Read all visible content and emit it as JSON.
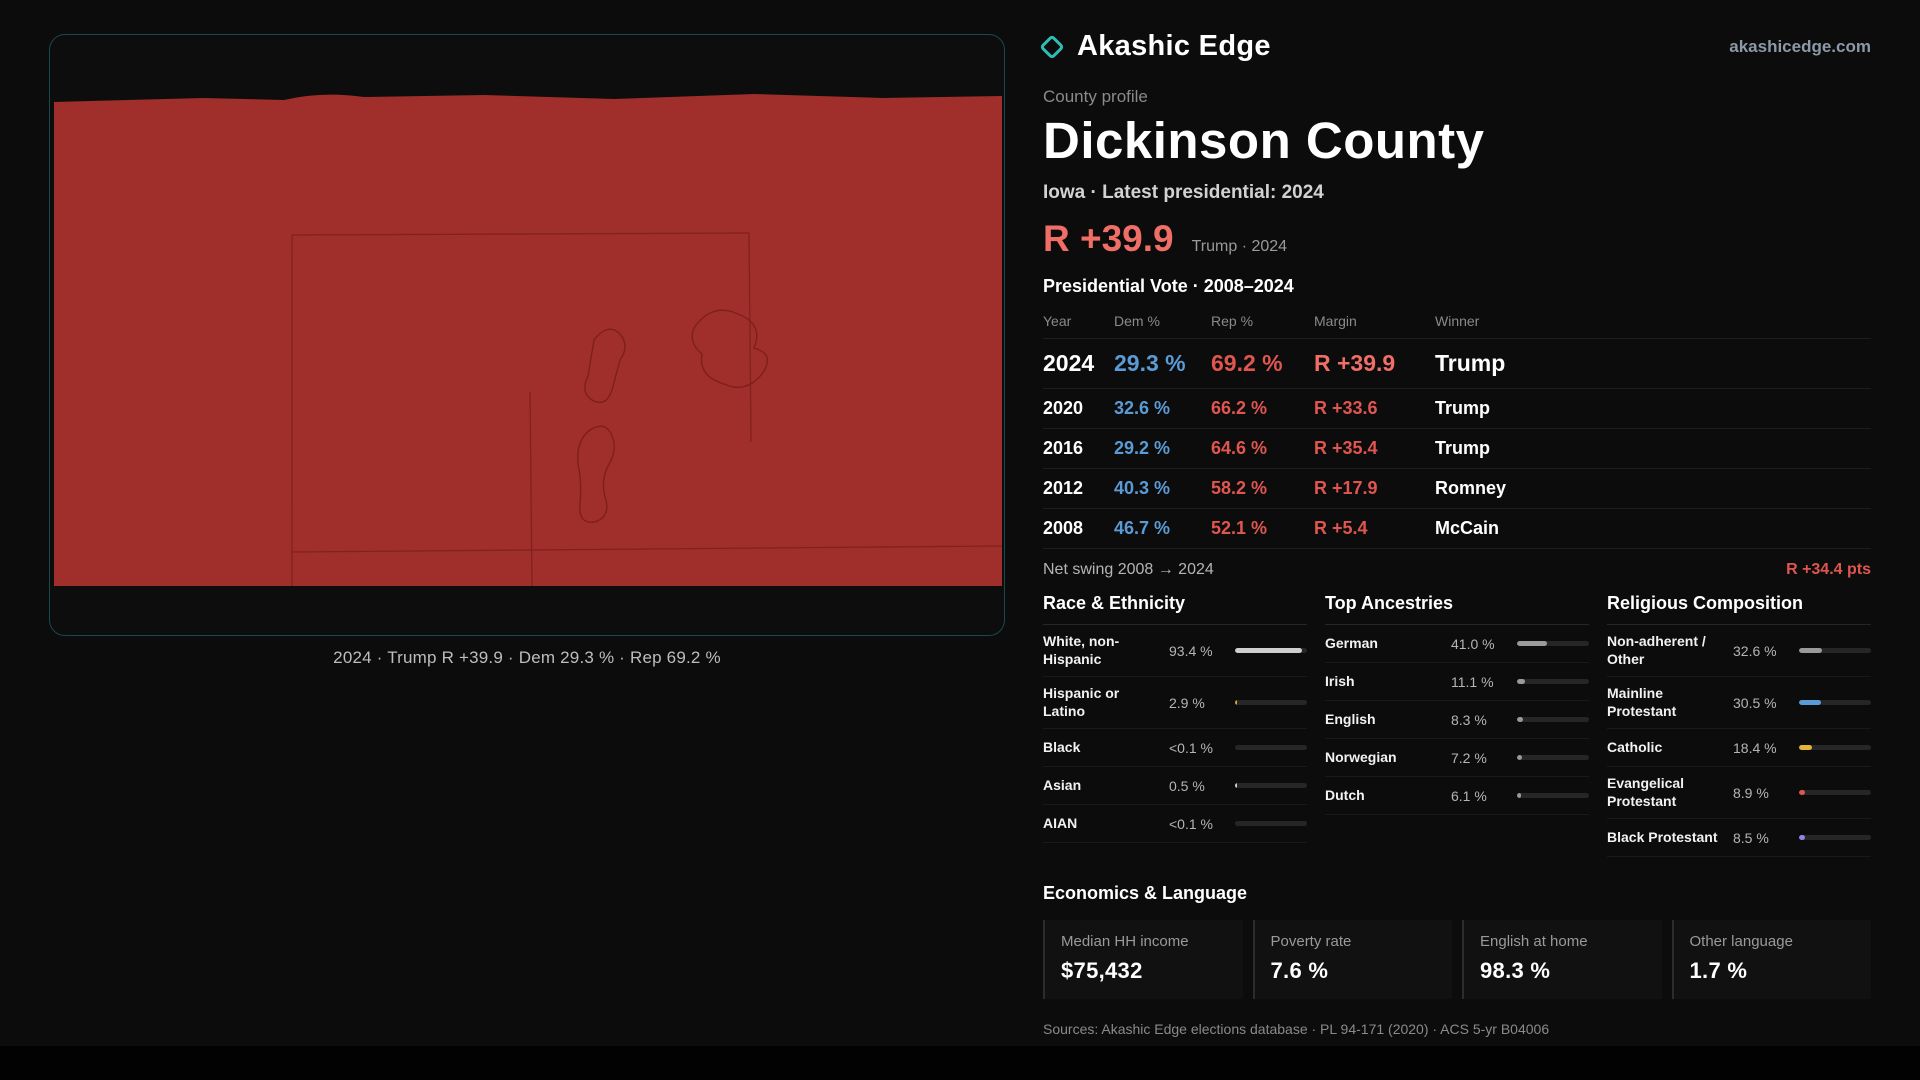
{
  "brand": {
    "name": "Akashic Edge",
    "site": "akashicedge.com"
  },
  "map": {
    "caption": "2024 · Trump  R +39.9 · Dem 29.3 % · Rep 69.2 %"
  },
  "profile": {
    "kicker": "County profile",
    "title": "Dickinson County",
    "subtitle": "Iowa · Latest presidential: 2024",
    "margin_big": "R +39.9",
    "margin_note": "Trump · 2024"
  },
  "vote_table": {
    "title": "Presidential Vote · 2008–2024",
    "headers": [
      "Year",
      "Dem %",
      "Rep %",
      "Margin",
      "Winner"
    ],
    "rows": [
      {
        "year": "2024",
        "dem": "29.3 %",
        "rep": "69.2 %",
        "margin": "R +39.9",
        "winner": "Trump"
      },
      {
        "year": "2020",
        "dem": "32.6 %",
        "rep": "66.2 %",
        "margin": "R +33.6",
        "winner": "Trump"
      },
      {
        "year": "2016",
        "dem": "29.2 %",
        "rep": "64.6 %",
        "margin": "R +35.4",
        "winner": "Trump"
      },
      {
        "year": "2012",
        "dem": "40.3 %",
        "rep": "58.2 %",
        "margin": "R +17.9",
        "winner": "Romney"
      },
      {
        "year": "2008",
        "dem": "46.7 %",
        "rep": "52.1 %",
        "margin": "R +5.4",
        "winner": "McCain"
      }
    ],
    "net_swing_label": "Net swing 2008 → 2024",
    "net_swing_value": "R +34.4 pts"
  },
  "demographics": {
    "race": {
      "title": "Race & Ethnicity",
      "rows": [
        {
          "label": "White, non-Hispanic",
          "value": "93.4 %",
          "pct": 93.4,
          "color": "#cfcfcf"
        },
        {
          "label": "Hispanic or Latino",
          "value": "2.9 %",
          "pct": 2.9,
          "color": "#d9a13a"
        },
        {
          "label": "Black",
          "value": "<0.1 %",
          "pct": 0,
          "color": "#cfcfcf"
        },
        {
          "label": "Asian",
          "value": "0.5 %",
          "pct": 0.5,
          "color": "#cfcfcf"
        },
        {
          "label": "AIAN",
          "value": "<0.1 %",
          "pct": 0,
          "color": "#cfcfcf"
        }
      ]
    },
    "ancestries": {
      "title": "Top Ancestries",
      "rows": [
        {
          "label": "German",
          "value": "41.0 %",
          "pct": 41.0,
          "color": "#9a9a9a"
        },
        {
          "label": "Irish",
          "value": "11.1 %",
          "pct": 11.1,
          "color": "#9a9a9a"
        },
        {
          "label": "English",
          "value": "8.3 %",
          "pct": 8.3,
          "color": "#9a9a9a"
        },
        {
          "label": "Norwegian",
          "value": "7.2 %",
          "pct": 7.2,
          "color": "#9a9a9a"
        },
        {
          "label": "Dutch",
          "value": "6.1 %",
          "pct": 6.1,
          "color": "#9a9a9a"
        }
      ]
    },
    "religion": {
      "title": "Religious Composition",
      "rows": [
        {
          "label": "Non-adherent / Other",
          "value": "32.6 %",
          "pct": 32.6,
          "color": "#9a9a9a"
        },
        {
          "label": "Mainline Protestant",
          "value": "30.5 %",
          "pct": 30.5,
          "color": "#5b9bd5"
        },
        {
          "label": "Catholic",
          "value": "18.4 %",
          "pct": 18.4,
          "color": "#e3b33c"
        },
        {
          "label": "Evangelical Protestant",
          "value": "8.9 %",
          "pct": 8.9,
          "color": "#e0564f"
        },
        {
          "label": "Black Protestant",
          "value": "8.5 %",
          "pct": 8.5,
          "color": "#8f86e8"
        }
      ]
    }
  },
  "economics": {
    "title": "Economics & Language",
    "cards": [
      {
        "label": "Median HH income",
        "value": "$75,432"
      },
      {
        "label": "Poverty rate",
        "value": "7.6 %"
      },
      {
        "label": "English at home",
        "value": "98.3 %"
      },
      {
        "label": "Other language",
        "value": "1.7 %"
      }
    ]
  },
  "footer": {
    "sources": "Sources: Akashic Edge elections database · PL 94-171 (2020) · ACS 5-yr B04006",
    "permalink": "akashicedge.com/counties/19059"
  },
  "colors": {
    "accent_teal": "#2fbdb3",
    "dem_blue": "#5b9bd5",
    "rep_red": "#e0564f",
    "margin_red": "#ef6e66",
    "map_red": "#a02e2a"
  }
}
